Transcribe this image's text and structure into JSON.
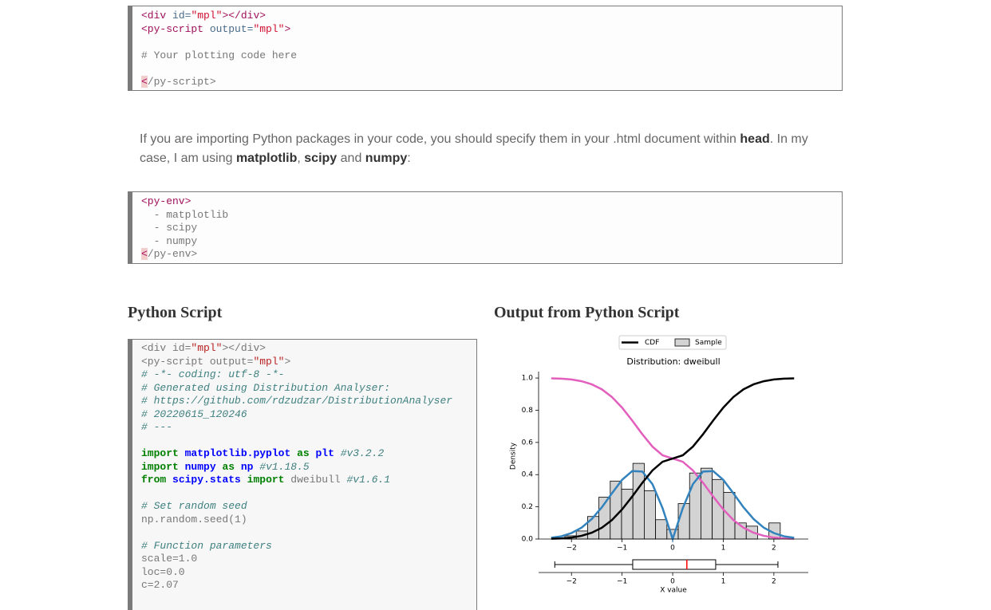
{
  "code_blocks": [
    {
      "lines": [
        [
          {
            "text": "<div",
            "color": "#a0105a"
          },
          {
            "text": " id=",
            "color": "#4a6b8a"
          },
          {
            "text": "\"mpl\"",
            "color": "#d01030"
          },
          {
            "text": "></div>",
            "color": "#a0105a"
          }
        ],
        [
          {
            "text": "<py-script",
            "color": "#a0105a"
          },
          {
            "text": " output=",
            "color": "#4a6b8a"
          },
          {
            "text": "\"mpl\"",
            "color": "#d01030"
          },
          {
            "text": ">",
            "color": "#a0105a"
          }
        ],
        [],
        [
          "# Your plotting code here"
        ],
        [],
        [
          {
            "text": "<",
            "color": "#a0105a",
            "background": "#f3cccc"
          },
          "/py-script>"
        ]
      ]
    },
    {
      "lines": [
        [
          {
            "text": "<py-env>",
            "color": "#a0105a"
          }
        ],
        [
          "  - matplotlib"
        ],
        [
          "  - scipy"
        ],
        [
          "  - numpy"
        ],
        [
          {
            "text": "<",
            "color": "#a0105a",
            "background": "#f3cccc"
          },
          "/py-env>"
        ]
      ]
    },
    {
      "lines": [
        [
          "<div id=",
          {
            "text": "\"mpl\"",
            "color": "#ba2121"
          },
          "></div>"
        ],
        [
          "<py-script output=",
          {
            "text": "\"mpl\"",
            "color": "#ba2121"
          },
          ">"
        ],
        [
          {
            "text": "# -*- coding: utf-8 -*-",
            "color": "#408080",
            "italic": true
          }
        ],
        [
          {
            "text": "# Generated using Distribution Analyser:",
            "color": "#408080",
            "italic": true
          }
        ],
        [
          {
            "text": "# https://github.com/rdzudzar/DistributionAnalyser",
            "color": "#408080",
            "italic": true
          }
        ],
        [
          {
            "text": "# 20220615_120246",
            "color": "#408080",
            "italic": true
          }
        ],
        [
          {
            "text": "# ---",
            "color": "#408080",
            "italic": true
          }
        ],
        [],
        [
          {
            "text": "import",
            "color": "#008000",
            "bold": true
          },
          " ",
          {
            "text": "matplotlib.pyplot",
            "color": "#0000ff",
            "bold": true
          },
          " ",
          {
            "text": "as",
            "color": "#008000",
            "bold": true
          },
          " ",
          {
            "text": "plt",
            "color": "#0000ff",
            "bold": true
          },
          " ",
          {
            "text": "#v3.2.2",
            "color": "#408080",
            "italic": true
          }
        ],
        [
          {
            "text": "import",
            "color": "#008000",
            "bold": true
          },
          " ",
          {
            "text": "numpy",
            "color": "#0000ff",
            "bold": true
          },
          " ",
          {
            "text": "as",
            "color": "#008000",
            "bold": true
          },
          " ",
          {
            "text": "np",
            "color": "#0000ff",
            "bold": true
          },
          " ",
          {
            "text": "#v1.18.5",
            "color": "#408080",
            "italic": true
          }
        ],
        [
          {
            "text": "from",
            "color": "#008000",
            "bold": true
          },
          " ",
          {
            "text": "scipy.stats",
            "color": "#0000ff",
            "bold": true
          },
          " ",
          {
            "text": "import",
            "color": "#008000",
            "bold": true
          },
          " dweibull ",
          {
            "text": "#v1.6.1",
            "color": "#408080",
            "italic": true
          }
        ],
        [],
        [
          {
            "text": "# Set random seed",
            "color": "#408080",
            "italic": true
          }
        ],
        [
          "np.random.seed(1)"
        ],
        [],
        [
          {
            "text": "# Function parameters",
            "color": "#408080",
            "italic": true
          }
        ],
        [
          "scale=1.0"
        ],
        [
          "loc=0.0"
        ],
        [
          "c=2.07"
        ]
      ]
    }
  ],
  "paragraph": [
    "If you are importing Python packages in your code, you should specify them in your .html document within ",
    {
      "text": "head",
      "bold": true
    },
    ". In my case, I am using ",
    {
      "text": "matplotlib",
      "bold": true
    },
    ", ",
    {
      "text": "scipy",
      "bold": true
    },
    " and ",
    {
      "text": "numpy",
      "bold": true
    },
    ":"
  ],
  "headings": [
    "Python Script",
    "Output from Python Script"
  ],
  "chart_data": {
    "type": "histogram",
    "title": "Distribution: dweibull",
    "xlabel": "X value",
    "ylabel": "Density",
    "histogram": {
      "name": "Sample",
      "color": "#d3d3d3",
      "edgecolor": "#000000",
      "bins": [
        -2.13,
        -1.906,
        -1.682,
        -1.458,
        -1.234,
        -1.01,
        -0.786,
        -0.562,
        -0.338,
        -0.114,
        0.11,
        0.334,
        0.558,
        0.782,
        1.006,
        1.23,
        1.454,
        1.678,
        1.902,
        2.126
      ],
      "values": [
        0.02,
        0.05,
        0.14,
        0.26,
        0.36,
        0.31,
        0.47,
        0.3,
        0.12,
        0.06,
        0.22,
        0.41,
        0.44,
        0.37,
        0.29,
        0.1,
        0.08,
        0,
        0.1
      ]
    },
    "x": [
      -2.4,
      -2.2,
      -2.0,
      -1.8,
      -1.6,
      -1.4,
      -1.2,
      -1.0,
      -0.8,
      -0.6,
      -0.4,
      -0.2,
      0,
      0.2,
      0.4,
      0.6,
      0.8,
      1.0,
      1.2,
      1.4,
      1.6,
      1.8,
      2.0,
      2.2,
      2.4
    ],
    "series": [
      {
        "name": "CDF",
        "color": "#000000",
        "values": [
          0.002,
          0.004,
          0.009,
          0.02,
          0.039,
          0.07,
          0.118,
          0.184,
          0.264,
          0.349,
          0.426,
          0.48,
          0.5,
          0.52,
          0.574,
          0.651,
          0.736,
          0.816,
          0.882,
          0.93,
          0.961,
          0.98,
          0.991,
          0.996,
          0.998
        ]
      },
      {
        "color": "#3182bd",
        "values": [
          0.008,
          0.017,
          0.037,
          0.071,
          0.124,
          0.197,
          0.284,
          0.368,
          0.422,
          0.419,
          0.341,
          0.192,
          0,
          0.192,
          0.341,
          0.419,
          0.422,
          0.368,
          0.284,
          0.197,
          0.124,
          0.071,
          0.037,
          0.017,
          0.008
        ]
      },
      {
        "color": "#e35fbd",
        "values": [
          0.998,
          0.996,
          0.991,
          0.98,
          0.961,
          0.93,
          0.882,
          0.816,
          0.736,
          0.651,
          0.574,
          0.52,
          0.5,
          0.48,
          0.426,
          0.349,
          0.264,
          0.184,
          0.118,
          0.07,
          0.039,
          0.02,
          0.009,
          0.004,
          0.002
        ]
      }
    ],
    "boxplot": {
      "whislo": -2.33,
      "q1": -0.79,
      "med": 0.28,
      "q3": 0.85,
      "whishi": 2.08,
      "color": "#000000",
      "median_color": "#ff0000"
    },
    "xlim": [
      -2.65,
      2.68
    ],
    "ylim": [
      0,
      1.04
    ],
    "xticks": [
      {
        "value": -2,
        "label": "−2"
      },
      {
        "value": -1,
        "label": "−1"
      },
      0,
      1,
      2
    ],
    "yticks": [
      {
        "value": 0,
        "label": "0.0"
      },
      0.2,
      0.4,
      0.6,
      0.8,
      {
        "value": 1,
        "label": "1.0"
      }
    ]
  }
}
